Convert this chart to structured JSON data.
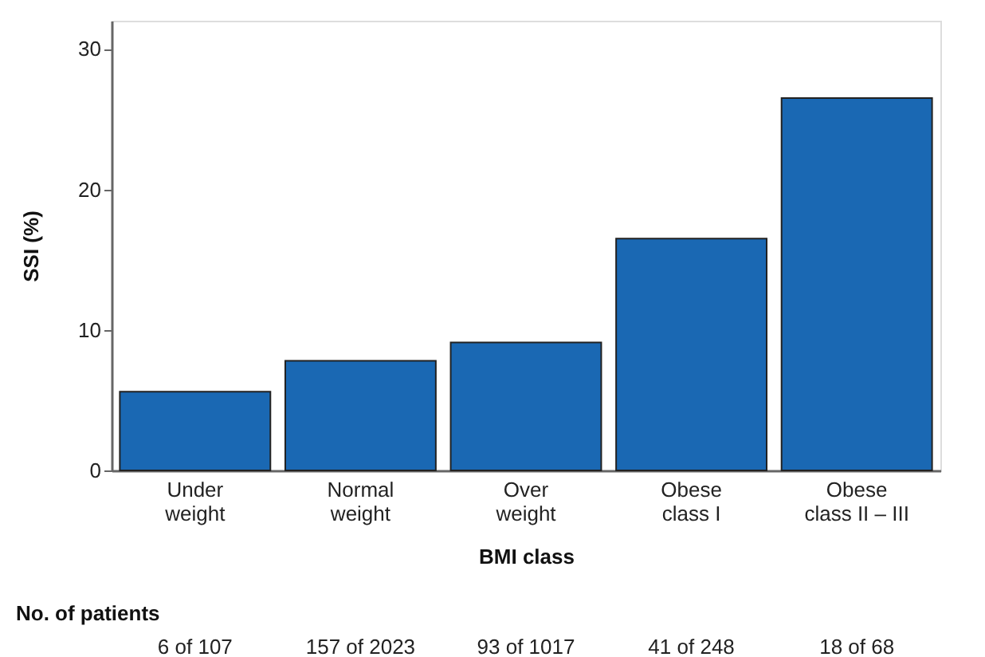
{
  "chart_data": {
    "type": "bar",
    "categories": [
      "Under\nweight",
      "Normal\nweight",
      "Over\nweight",
      "Obese\nclass I",
      "Obese\nclass II – III"
    ],
    "values": [
      5.6,
      7.8,
      9.1,
      16.5,
      26.5
    ],
    "color": "#1a68b3",
    "xlabel": "BMI class",
    "ylabel": "SSI (%)",
    "ylim": [
      0,
      32
    ],
    "yticks": [
      0,
      10,
      20,
      30
    ],
    "grid": false,
    "annotations": [
      "No. of patients",
      "6 of 107",
      "157 of 2023",
      "93 of 1017",
      "41 of 248",
      "18 of 68"
    ]
  }
}
